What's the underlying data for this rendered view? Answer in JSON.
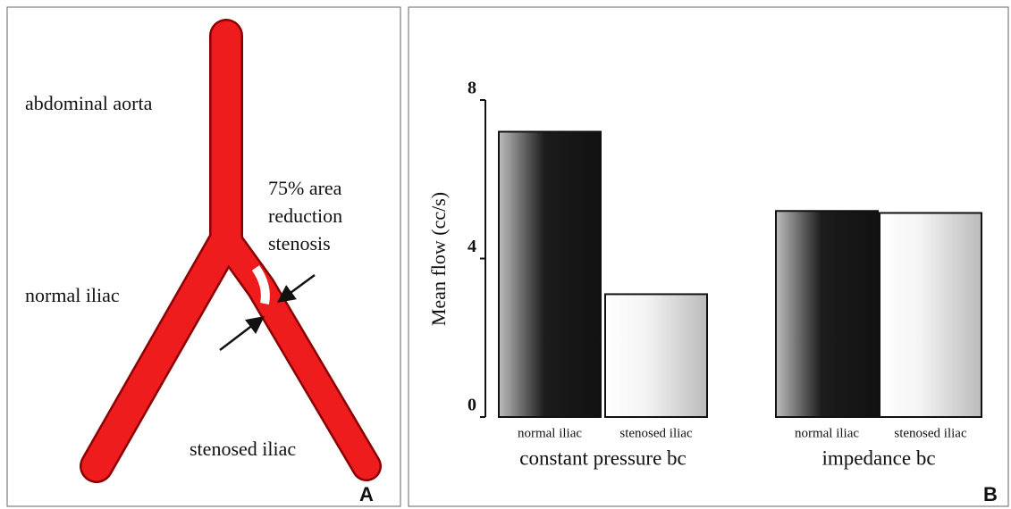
{
  "diagram": {
    "aorta_label": "abdominal aorta",
    "stenosis_label": [
      "75% area",
      "reduction",
      "stenosis"
    ],
    "normal_label": "normal iliac",
    "stenosed_label": "stenosed iliac",
    "panel": "A"
  },
  "chart_data": {
    "type": "bar",
    "panel": "B",
    "y_label": "Mean flow (cc/s)",
    "categories": [
      "normal iliac",
      "stenosed iliac",
      "normal iliac",
      "stenosed iliac"
    ],
    "values": [
      7.2,
      3.1,
      5.2,
      5.15
    ],
    "group_labels": [
      "constant pressure bc",
      "impedance bc"
    ],
    "ylim": [
      0,
      8
    ],
    "yticks": [
      0,
      4,
      8
    ]
  }
}
